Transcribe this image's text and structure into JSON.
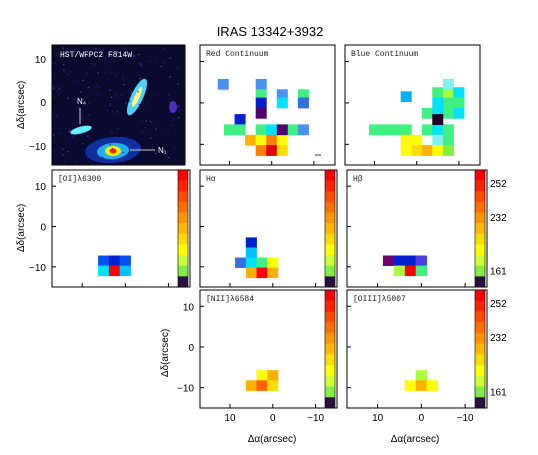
{
  "figure": {
    "title": "IRAS 13342+3932",
    "xlabel": "Δα(arcsec)",
    "ylabel": "Δδ(arcsec)"
  },
  "colorbar": {
    "colors": [
      "#ff0000",
      "#ff2200",
      "#ff4a00",
      "#ff6f00",
      "#ff9400",
      "#ffb800",
      "#ffdc00",
      "#ffff00",
      "#ccff33",
      "#80ee44",
      "#2a1040"
    ],
    "tick_labels": [
      "252",
      "232",
      "161"
    ]
  },
  "chart_data": [
    {
      "type": "image",
      "id": "hst",
      "label": "HST/WFPC2 F814W",
      "annotations": [
        "N₄",
        "N₁"
      ],
      "yticks": [
        "10",
        "0",
        "−10"
      ]
    },
    {
      "type": "heatmap",
      "id": "red",
      "label": "Red Continuum",
      "pixels": [
        {
          "x": 11.5,
          "y": 4.5,
          "c": "#4a90f0"
        },
        {
          "x": 2.5,
          "y": 4.5,
          "c": "#4a90f0"
        },
        {
          "x": -2.5,
          "y": 2.0,
          "c": "#4a90f0"
        },
        {
          "x": -2.5,
          "y": 0.0,
          "c": "#00e0ff"
        },
        {
          "x": -7.5,
          "y": 2.0,
          "c": "#40f080"
        },
        {
          "x": -7.5,
          "y": 0.0,
          "c": "#3070e0"
        },
        {
          "x": 2.5,
          "y": 2.0,
          "c": "#40f080"
        },
        {
          "x": 2.5,
          "y": 0.0,
          "c": "#0020d0"
        },
        {
          "x": 2.5,
          "y": -2.5,
          "c": "#500070"
        },
        {
          "x": 7.5,
          "y": -4.0,
          "c": "#0020d0"
        },
        {
          "x": 7.5,
          "y": -6.5,
          "c": "#40f080"
        },
        {
          "x": 2.5,
          "y": -6.5,
          "c": "#40f080"
        },
        {
          "x": 0.0,
          "y": -6.5,
          "c": "#00e0ff"
        },
        {
          "x": -2.5,
          "y": -6.5,
          "c": "#40f080"
        },
        {
          "x": -5.0,
          "y": -6.5,
          "c": "#40f080"
        },
        {
          "x": -7.5,
          "y": -6.5,
          "c": "#4a90f0"
        },
        {
          "x": 10.0,
          "y": -6.5,
          "c": "#40f080"
        },
        {
          "x": 5.0,
          "y": -9.0,
          "c": "#ffb000"
        },
        {
          "x": 2.5,
          "y": -9.0,
          "c": "#ffff00"
        },
        {
          "x": 0.0,
          "y": -9.0,
          "c": "#ff8000"
        },
        {
          "x": -2.5,
          "y": -9.0,
          "c": "#ffff00"
        },
        {
          "x": -2.5,
          "y": -6.5,
          "c": "#500070"
        },
        {
          "x": 2.5,
          "y": -11.5,
          "c": "#ff8000"
        },
        {
          "x": 0.0,
          "y": -11.5,
          "c": "#e00000"
        },
        {
          "x": -2.5,
          "y": -11.5,
          "c": "#ffdc00"
        }
      ]
    },
    {
      "type": "heatmap",
      "id": "blue",
      "label": "Blue Continuum",
      "pixels": [
        {
          "x": 2.5,
          "y": 1.5,
          "c": "#00b0ff"
        },
        {
          "x": -5.0,
          "y": 2.5,
          "c": "#40f080"
        },
        {
          "x": -7.5,
          "y": 2.5,
          "c": "#aaff40"
        },
        {
          "x": -7.5,
          "y": 4.5,
          "c": "#80f0f0"
        },
        {
          "x": -7.5,
          "y": 0.0,
          "c": "#40f080"
        },
        {
          "x": -10.0,
          "y": 2.5,
          "c": "#00e0ff"
        },
        {
          "x": -10.0,
          "y": 0.0,
          "c": "#40f080"
        },
        {
          "x": -5.0,
          "y": 0.0,
          "c": "#00e0ff"
        },
        {
          "x": -2.5,
          "y": -2.5,
          "c": "#40f080"
        },
        {
          "x": -5.0,
          "y": -2.5,
          "c": "#00e0ff"
        },
        {
          "x": -7.5,
          "y": -2.5,
          "c": "#40f080"
        },
        {
          "x": -10.0,
          "y": -2.5,
          "c": "#00e0ff"
        },
        {
          "x": 2.5,
          "y": -6.5,
          "c": "#40f080"
        },
        {
          "x": 10.0,
          "y": -6.5,
          "c": "#40f080"
        },
        {
          "x": 7.5,
          "y": -6.5,
          "c": "#40f080"
        },
        {
          "x": 5.0,
          "y": -6.5,
          "c": "#40f080"
        },
        {
          "x": -2.5,
          "y": -6.5,
          "c": "#40f080"
        },
        {
          "x": -5.0,
          "y": -6.5,
          "c": "#00e0ff"
        },
        {
          "x": -7.5,
          "y": -6.5,
          "c": "#40f080"
        },
        {
          "x": 0.0,
          "y": -9.0,
          "c": "#ffff00"
        },
        {
          "x": 2.5,
          "y": -9.0,
          "c": "#ffff00"
        },
        {
          "x": -5.0,
          "y": -9.0,
          "c": "#80f0f0"
        },
        {
          "x": -7.5,
          "y": -9.0,
          "c": "#40f080"
        },
        {
          "x": -5.0,
          "y": -4.0,
          "c": "#200020"
        },
        {
          "x": 0.0,
          "y": -11.5,
          "c": "#ffdc00"
        },
        {
          "x": 2.5,
          "y": -11.5,
          "c": "#ffff00"
        },
        {
          "x": -2.5,
          "y": -11.5,
          "c": "#ffb000"
        },
        {
          "x": -5.0,
          "y": -11.5,
          "c": "#ffff00"
        },
        {
          "x": -7.5,
          "y": -11.5,
          "c": "#80f040"
        }
      ]
    },
    {
      "type": "heatmap",
      "id": "oi",
      "label": "[OI]λ6300",
      "yticks": [
        "10",
        "0",
        "−10"
      ],
      "pixels": [
        {
          "x": 5.0,
          "y": -8.5,
          "c": "#0050f0"
        },
        {
          "x": 2.5,
          "y": -8.5,
          "c": "#0020d0"
        },
        {
          "x": 0.0,
          "y": -8.5,
          "c": "#0050f0"
        },
        {
          "x": 5.0,
          "y": -11.0,
          "c": "#00e0ff"
        },
        {
          "x": 2.5,
          "y": -11.0,
          "c": "#ff0000"
        },
        {
          "x": 0.0,
          "y": -11.0,
          "c": "#00c0ff"
        }
      ]
    },
    {
      "type": "heatmap",
      "id": "ha",
      "label": "Hα",
      "pixels": [
        {
          "x": 5.0,
          "y": -4.0,
          "c": "#0020d0"
        },
        {
          "x": 5.0,
          "y": -6.5,
          "c": "#00c0ff"
        },
        {
          "x": 7.5,
          "y": -9.0,
          "c": "#3070e0"
        },
        {
          "x": 5.0,
          "y": -9.0,
          "c": "#00e0ff"
        },
        {
          "x": 2.5,
          "y": -9.0,
          "c": "#40f080"
        },
        {
          "x": 0.0,
          "y": -9.0,
          "c": "#ffff00"
        },
        {
          "x": 5.0,
          "y": -11.5,
          "c": "#ffb000"
        },
        {
          "x": 2.5,
          "y": -11.5,
          "c": "#ff0000"
        },
        {
          "x": 0.0,
          "y": -11.5,
          "c": "#ffb000"
        }
      ]
    },
    {
      "type": "heatmap",
      "id": "hb",
      "label": "Hβ",
      "pixels": [
        {
          "x": 7.5,
          "y": -8.5,
          "c": "#700070"
        },
        {
          "x": 5.0,
          "y": -8.5,
          "c": "#0020d0"
        },
        {
          "x": 2.5,
          "y": -8.5,
          "c": "#0020d0"
        },
        {
          "x": 0.0,
          "y": -8.5,
          "c": "#4a40e0"
        },
        {
          "x": 5.0,
          "y": -11.0,
          "c": "#aaff40"
        },
        {
          "x": 2.5,
          "y": -11.0,
          "c": "#ff0000"
        },
        {
          "x": 0.0,
          "y": -11.0,
          "c": "#40f080"
        }
      ]
    },
    {
      "type": "heatmap",
      "id": "nii",
      "label": "[NII]λ6584",
      "yticks": [
        "10",
        "0",
        "−10"
      ],
      "xticks": [
        "10",
        "0",
        "−10"
      ],
      "pixels": [
        {
          "x": 2.5,
          "y": -7.0,
          "c": "#ffff00"
        },
        {
          "x": 0.0,
          "y": -7.0,
          "c": "#ffb000"
        },
        {
          "x": 5.0,
          "y": -9.5,
          "c": "#ffb000"
        },
        {
          "x": 2.5,
          "y": -9.5,
          "c": "#ff6000"
        },
        {
          "x": 0.0,
          "y": -9.5,
          "c": "#ffdc00"
        }
      ]
    },
    {
      "type": "heatmap",
      "id": "oiii",
      "label": "[OIII]λ5007",
      "xticks": [
        "10",
        "0",
        "−10"
      ],
      "pixels": [
        {
          "x": 0.0,
          "y": -7.0,
          "c": "#aaff40"
        },
        {
          "x": 2.5,
          "y": -9.5,
          "c": "#ffff00"
        },
        {
          "x": 0.0,
          "y": -9.5,
          "c": "#ffb000"
        },
        {
          "x": -2.5,
          "y": -9.5,
          "c": "#ffff00"
        }
      ]
    }
  ]
}
